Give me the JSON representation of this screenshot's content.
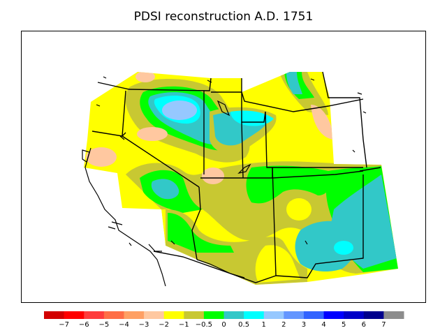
{
  "title": "PDSI reconstruction A.D. 1751",
  "colorbar": {
    "bins": [
      {
        "color": "#d20000",
        "label": ""
      },
      {
        "color": "#ff0000",
        "label": "−7"
      },
      {
        "color": "#ff3c3c",
        "label": "−6"
      },
      {
        "color": "#ff6e46",
        "label": "−5"
      },
      {
        "color": "#ffa064",
        "label": "−4"
      },
      {
        "color": "#ffc8a0",
        "label": "−3"
      },
      {
        "color": "#ffff00",
        "label": "−2"
      },
      {
        "color": "#c8c832",
        "label": "−1"
      },
      {
        "color": "#00ff00",
        "label": "−0.5"
      },
      {
        "color": "#32c8c8",
        "label": "0"
      },
      {
        "color": "#00ffff",
        "label": "0.5"
      },
      {
        "color": "#96c8ff",
        "label": "1"
      },
      {
        "color": "#6496ff",
        "label": "2"
      },
      {
        "color": "#3264ff",
        "label": "3"
      },
      {
        "color": "#0000ff",
        "label": "4"
      },
      {
        "color": "#0000c8",
        "label": "5"
      },
      {
        "color": "#00008c",
        "label": "6"
      },
      {
        "color": "#8c8c8c",
        "label": "7"
      }
    ]
  }
}
